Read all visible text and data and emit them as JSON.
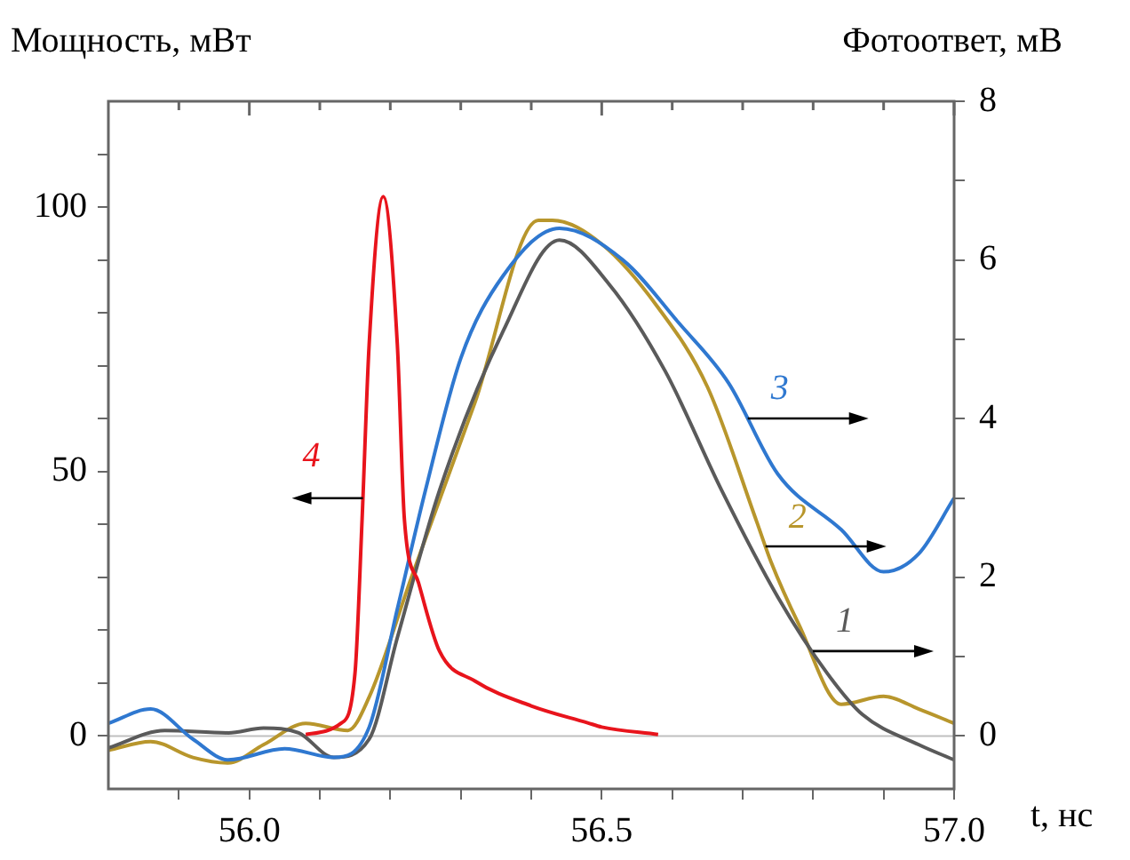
{
  "chart_data": {
    "type": "line",
    "xlabel": "t, нс",
    "ylabel": "Мощность, мВт",
    "y2label": "Фотоответ, мВ",
    "xlim": [
      55.8,
      57.0
    ],
    "xticks": [
      {
        "value": 55.9,
        "label": null
      },
      {
        "value": 56.0,
        "label": "56.0"
      },
      {
        "value": 56.1,
        "label": null
      },
      {
        "value": 56.2,
        "label": null
      },
      {
        "value": 56.3,
        "label": null
      },
      {
        "value": 56.4,
        "label": null
      },
      {
        "value": 56.5,
        "label": "56.5"
      },
      {
        "value": 56.6,
        "label": null
      },
      {
        "value": 56.7,
        "label": null
      },
      {
        "value": 56.8,
        "label": null
      },
      {
        "value": 56.9,
        "label": null
      },
      {
        "value": 57.0,
        "label": "57.0"
      }
    ],
    "ylim": [
      -10,
      120
    ],
    "yticks": [
      0,
      {
        "value": 10,
        "label": null
      },
      {
        "value": 20,
        "label": null
      },
      {
        "value": 30,
        "label": null
      },
      {
        "value": 40,
        "label": null
      },
      50,
      {
        "value": 60,
        "label": null
      },
      {
        "value": 70,
        "label": null
      },
      {
        "value": 80,
        "label": null
      },
      {
        "value": 90,
        "label": null
      },
      100,
      {
        "value": 110,
        "label": null
      }
    ],
    "y2lim": [
      -0.6667,
      8
    ],
    "y2ticks": [
      0,
      {
        "value": 1,
        "label": null
      },
      2,
      {
        "value": 3,
        "label": null
      },
      4,
      {
        "value": 5,
        "label": null
      },
      6,
      {
        "value": 7,
        "label": null
      },
      8
    ],
    "grid": false,
    "legend": false,
    "marker": "none",
    "line_style": "solid",
    "ref_lines": [
      {
        "axis": "y",
        "value": 0,
        "color": "#c0c0c0"
      }
    ],
    "series": [
      {
        "name": "4",
        "color": "#e8141c",
        "axis": "y",
        "x": [
          56.08,
          56.13,
          56.15,
          56.16,
          56.17,
          56.19,
          56.21,
          56.22,
          56.24,
          56.27,
          56.32,
          56.4,
          56.48,
          56.5,
          56.58
        ],
        "values": [
          0.3,
          2.4,
          12,
          41,
          74,
          102,
          74,
          41,
          29,
          16,
          10.4,
          5.7,
          2.5,
          1.7,
          0.3
        ]
      },
      {
        "name": "3",
        "color": "#2f78d0",
        "axis": "y2",
        "x": [
          55.8,
          55.86,
          55.92,
          55.97,
          56.05,
          56.12,
          56.17,
          56.21,
          56.25,
          56.3,
          56.36,
          56.44,
          56.53,
          56.61,
          56.68,
          56.75,
          56.84,
          56.9,
          56.95,
          57.0
        ],
        "values": [
          0.16,
          0.34,
          -0.04,
          -0.3,
          -0.16,
          -0.27,
          0.11,
          1.6,
          3.1,
          4.76,
          5.8,
          6.4,
          6.0,
          5.2,
          4.45,
          3.3,
          2.6,
          2.07,
          2.3,
          3.0
        ]
      },
      {
        "name": "1",
        "color": "#5a5a5a",
        "axis": "y2",
        "x": [
          55.8,
          55.88,
          55.97,
          56.02,
          56.07,
          56.12,
          56.17,
          56.21,
          56.27,
          56.36,
          56.44,
          56.51,
          56.59,
          56.67,
          56.75,
          56.82,
          56.87,
          56.95,
          57.0
        ],
        "values": [
          -0.15,
          0.07,
          0.04,
          0.1,
          0.04,
          -0.27,
          -0.04,
          1.24,
          3.1,
          5.1,
          6.25,
          5.7,
          4.6,
          3.1,
          1.75,
          0.79,
          0.27,
          -0.11,
          -0.3
        ]
      },
      {
        "name": "2",
        "color": "#b8962c",
        "axis": "y2",
        "x": [
          55.8,
          55.86,
          55.92,
          55.97,
          56.02,
          56.08,
          56.14,
          56.17,
          56.23,
          56.32,
          56.41,
          56.43,
          56.5,
          56.58,
          56.65,
          56.72,
          56.74,
          56.78,
          56.84,
          56.9,
          56.95,
          57.0
        ],
        "values": [
          -0.18,
          -0.07,
          -0.27,
          -0.34,
          -0.11,
          0.16,
          0.07,
          0.49,
          2.0,
          4.2,
          6.5,
          6.5,
          6.2,
          5.4,
          4.4,
          2.7,
          2.2,
          1.4,
          0.4,
          0.5,
          0.34,
          0.16
        ]
      }
    ]
  }
}
